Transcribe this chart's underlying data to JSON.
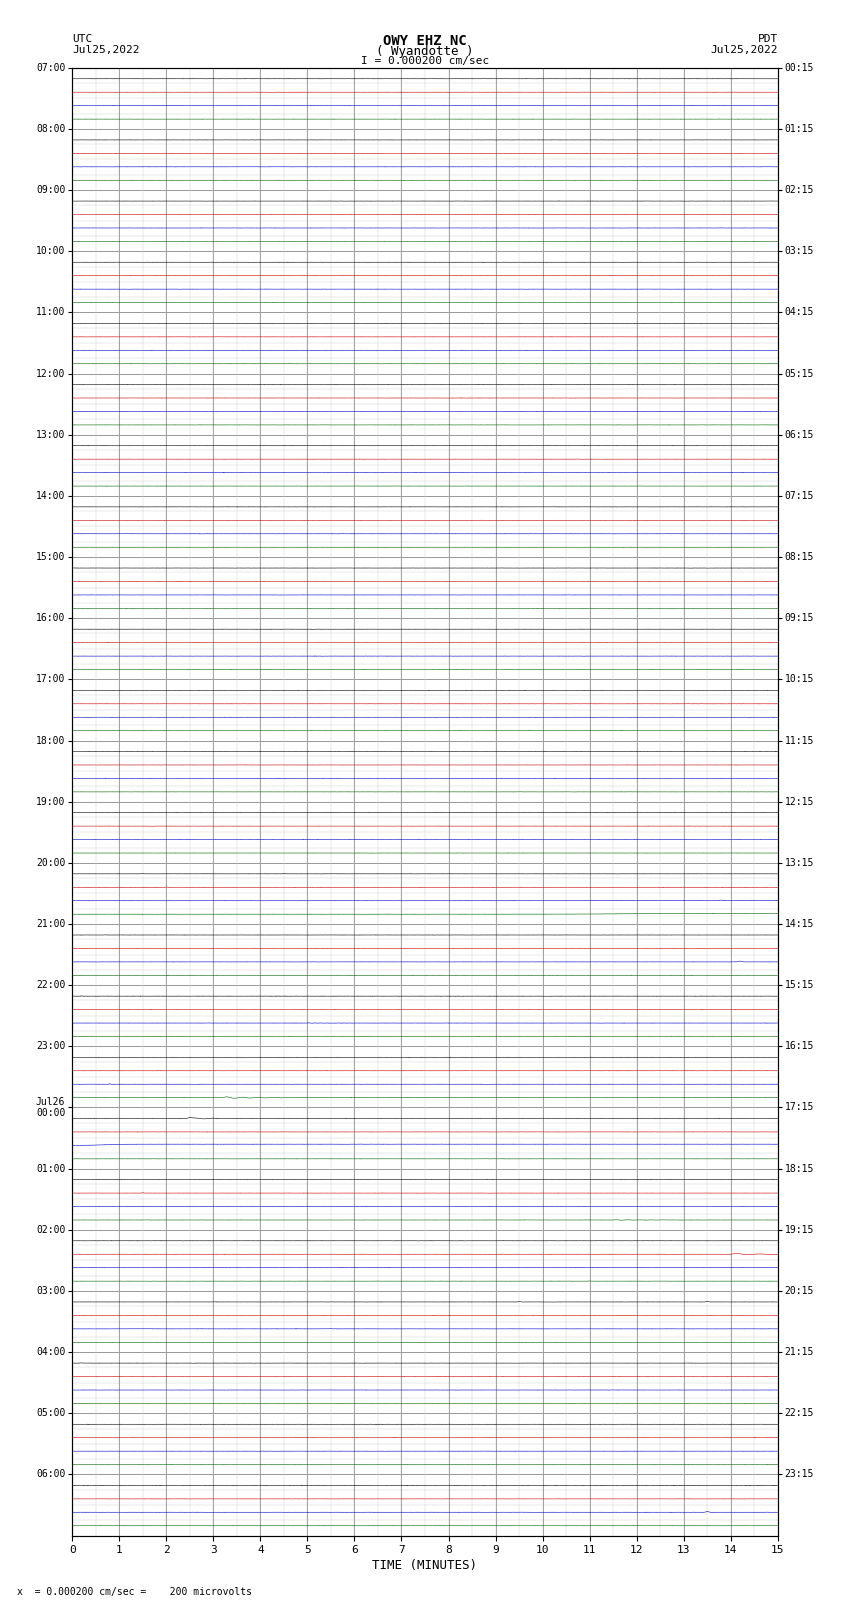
{
  "title_line1": "OWY EHZ NC",
  "title_line2": "( Wyandotte )",
  "scale_label": "I = 0.000200 cm/sec",
  "left_label_line1": "UTC",
  "left_label_line2": "Jul25,2022",
  "right_label_line1": "PDT",
  "right_label_line2": "Jul25,2022",
  "xlabel": "TIME (MINUTES)",
  "footnote": "x  = 0.000200 cm/sec =    200 microvolts",
  "xlim": [
    0,
    15
  ],
  "xticks": [
    0,
    1,
    2,
    3,
    4,
    5,
    6,
    7,
    8,
    9,
    10,
    11,
    12,
    13,
    14,
    15
  ],
  "num_rows": 24,
  "utc_labels": [
    "07:00",
    "08:00",
    "09:00",
    "10:00",
    "11:00",
    "12:00",
    "13:00",
    "14:00",
    "15:00",
    "16:00",
    "17:00",
    "18:00",
    "19:00",
    "20:00",
    "21:00",
    "22:00",
    "23:00",
    "Jul26\n00:00",
    "01:00",
    "02:00",
    "03:00",
    "04:00",
    "05:00",
    "06:00"
  ],
  "pdt_labels": [
    "00:15",
    "01:15",
    "02:15",
    "03:15",
    "04:15",
    "05:15",
    "06:15",
    "07:15",
    "08:15",
    "09:15",
    "10:15",
    "11:15",
    "12:15",
    "13:15",
    "14:15",
    "15:15",
    "16:15",
    "17:15",
    "18:15",
    "19:15",
    "20:15",
    "21:15",
    "22:15",
    "23:15"
  ],
  "bg_color": "#ffffff",
  "grid_color": "#888888",
  "minor_grid_color": "#cccccc",
  "trace_colors": [
    "#000000",
    "#cc0000",
    "#0000cc",
    "#006600"
  ]
}
